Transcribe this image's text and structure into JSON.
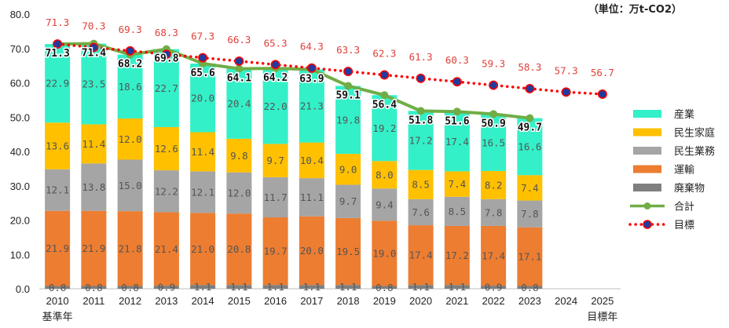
{
  "chart_data": {
    "type": "bar",
    "stacked": true,
    "unit_label": "（単位：万t-CO2）",
    "ylim": [
      0,
      80
    ],
    "yticks": [
      "0.0",
      "10.0",
      "20.0",
      "30.0",
      "40.0",
      "50.0",
      "60.0",
      "70.0",
      "80.0"
    ],
    "categories": [
      "2010",
      "2011",
      "2012",
      "2013",
      "2014",
      "2015",
      "2016",
      "2017",
      "2018",
      "2019",
      "2020",
      "2021",
      "2022",
      "2023",
      "2024",
      "2025"
    ],
    "category_sublabels": {
      "2010": "基準年",
      "2025": "目標年"
    },
    "series": [
      {
        "name": "廃棄物",
        "color": "#7f7f7f",
        "values": [
          0.8,
          0.8,
          0.8,
          0.9,
          1.1,
          1.1,
          1.1,
          1.1,
          1.1,
          0.8,
          1.1,
          1.1,
          0.9,
          0.8,
          null,
          null
        ],
        "labels": [
          "0.8",
          "0.8",
          "0.8",
          "0.9",
          "1.1",
          "1.1",
          "1.1",
          "1.1",
          "1.1",
          "0.8",
          "1.1",
          "1.1",
          "0.9",
          "0.8",
          null,
          null
        ]
      },
      {
        "name": "運輸",
        "color": "#ed7d31",
        "values": [
          21.9,
          21.9,
          21.8,
          21.4,
          21.0,
          20.8,
          19.7,
          20.0,
          19.5,
          19.0,
          17.4,
          17.2,
          17.4,
          17.1,
          null,
          null
        ],
        "labels": [
          "21.9",
          "21.9",
          "21.8",
          "21.4",
          "21.0",
          "20.8",
          "19.7",
          "20.0",
          "19.5",
          "19.0",
          "17.4",
          "17.2",
          "17.4",
          "17.1",
          null,
          null
        ]
      },
      {
        "name": "民生業務",
        "color": "#a5a5a5",
        "values": [
          12.1,
          13.8,
          15.0,
          12.2,
          12.1,
          12.0,
          11.7,
          11.1,
          9.7,
          9.4,
          7.6,
          8.5,
          7.8,
          7.8,
          null,
          null
        ],
        "labels": [
          "12.1",
          "13.8",
          "15.0",
          "12.2",
          "12.1",
          "12.0",
          "11.7",
          "11.1",
          "9.7",
          "9.4",
          "7.6",
          "8.5",
          "7.8",
          "7.8",
          null,
          null
        ]
      },
      {
        "name": "民生家庭",
        "color": "#ffc000",
        "values": [
          13.6,
          11.4,
          12.0,
          12.6,
          11.4,
          9.8,
          9.7,
          10.4,
          9.0,
          8.0,
          8.5,
          7.4,
          8.2,
          7.4,
          null,
          null
        ],
        "labels": [
          "13.6",
          "11.4",
          "12.0",
          "12.6",
          "11.4",
          "9.8",
          "9.7",
          "10.4",
          "9.0",
          "8.0",
          "8.5",
          "7.4",
          "8.2",
          "7.4",
          null,
          null
        ]
      },
      {
        "name": "産業",
        "color": "#33f0c8",
        "values": [
          22.9,
          23.5,
          18.6,
          22.7,
          20.0,
          20.4,
          22.0,
          21.3,
          19.8,
          19.2,
          17.2,
          17.4,
          16.5,
          16.6,
          null,
          null
        ],
        "labels": [
          "22.9",
          "23.5",
          "18.6",
          "22.7",
          "20.0",
          "20.4",
          "22.0",
          "21.3",
          "19.8",
          "19.2",
          "17.2",
          "17.4",
          "16.5",
          "16.6",
          null,
          null
        ]
      }
    ],
    "total": {
      "name": "合計",
      "color": "#70ad47",
      "values": [
        71.3,
        71.4,
        68.2,
        69.8,
        65.6,
        64.1,
        64.2,
        63.9,
        59.1,
        56.4,
        51.8,
        51.6,
        50.9,
        49.7,
        null,
        null
      ],
      "labels": [
        "71.3",
        "71.4",
        "68.2",
        "69.8",
        "65.6",
        "64.1",
        "64.2",
        "63.9",
        "59.1",
        "56.4",
        "51.8",
        "51.6",
        "50.9",
        "49.7",
        null,
        null
      ]
    },
    "target": {
      "name": "目標",
      "line_color": "#ff0000",
      "marker_color": "#1f3c9e",
      "values": [
        71.3,
        70.3,
        69.3,
        68.3,
        67.3,
        66.3,
        65.3,
        64.3,
        63.3,
        62.3,
        61.3,
        60.3,
        59.3,
        58.3,
        57.3,
        56.7
      ],
      "labels": [
        "71.3",
        "70.3",
        "69.3",
        "68.3",
        "67.3",
        "66.3",
        "65.3",
        "64.3",
        "63.3",
        "62.3",
        "61.3",
        "60.3",
        "59.3",
        "58.3",
        "57.3",
        "56.7"
      ]
    },
    "legend": [
      "産業",
      "民生家庭",
      "民生業務",
      "運輸",
      "廃棄物",
      "合計",
      "目標"
    ],
    "legend_placement": "right",
    "grid": false
  }
}
